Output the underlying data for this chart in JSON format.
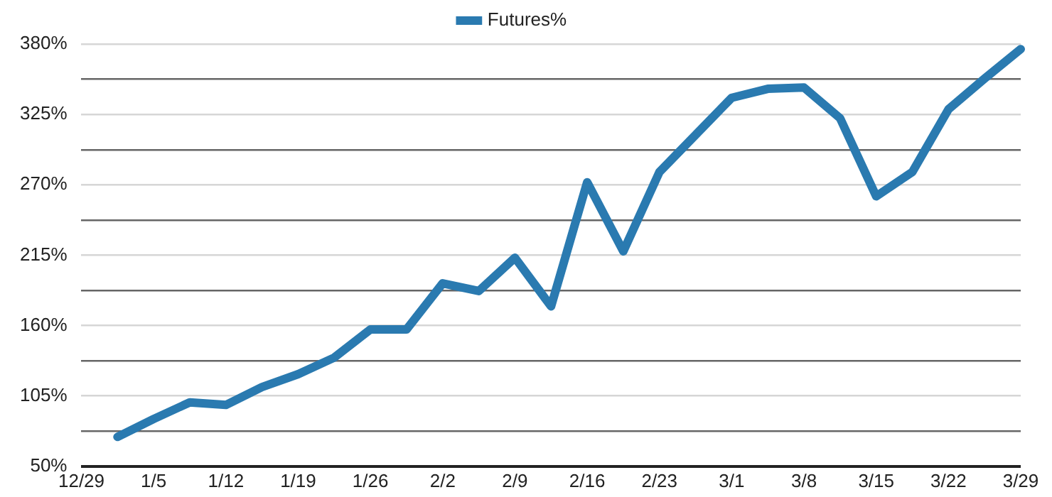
{
  "chart_data": {
    "type": "line",
    "categories": [
      "12/29",
      null,
      "1/5",
      null,
      "1/12",
      null,
      "1/19",
      null,
      "1/26",
      null,
      "2/2",
      null,
      "2/9",
      null,
      "2/16",
      null,
      "2/23",
      null,
      "3/1",
      null,
      "3/8",
      null,
      "3/15",
      null,
      "3/22",
      null,
      "3/29"
    ],
    "series": [
      {
        "name": "Futures%",
        "color": "#2a7ab0",
        "values": [
          null,
          73,
          87,
          100,
          98,
          112,
          122,
          135,
          157,
          157,
          193,
          187,
          213,
          175,
          272,
          218,
          280,
          309,
          338,
          345,
          346,
          322,
          261,
          280,
          329,
          353,
          376
        ]
      }
    ],
    "ylim": [
      50,
      380
    ],
    "yticks": [
      {
        "value": 50,
        "label": "50%"
      },
      {
        "value": 77.5,
        "label": null
      },
      {
        "value": 105,
        "label": "105%"
      },
      {
        "value": 132.5,
        "label": null
      },
      {
        "value": 160,
        "label": "160%"
      },
      {
        "value": 187.5,
        "label": null
      },
      {
        "value": 215,
        "label": "215%"
      },
      {
        "value": 242.5,
        "label": null
      },
      {
        "value": 270,
        "label": "270%"
      },
      {
        "value": 297.5,
        "label": null
      },
      {
        "value": 325,
        "label": "325%"
      },
      {
        "value": 352.5,
        "label": null
      },
      {
        "value": 380,
        "label": "380%"
      }
    ],
    "grid": "y",
    "legend": "top",
    "marker": "none",
    "line_style": "solid"
  }
}
